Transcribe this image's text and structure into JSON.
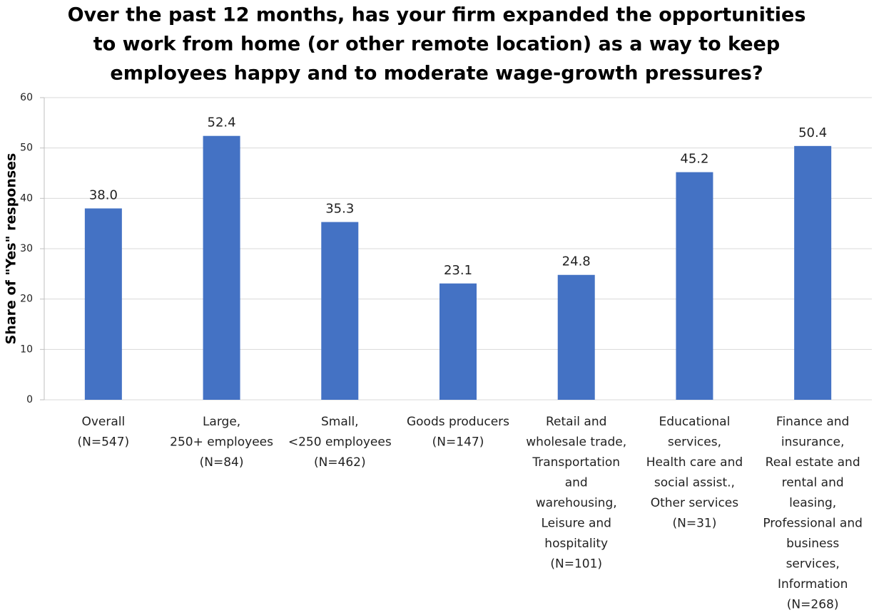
{
  "chart_data": {
    "type": "bar",
    "title": [
      "Over the past 12 months, has your firm expanded the opportunities",
      "to work from home (or other remote location) as a way to keep",
      "employees happy and to moderate wage-growth pressures?"
    ],
    "y_label": "Share of \"Yes\" responses",
    "categories": [
      [
        "Overall",
        "(N=547)"
      ],
      [
        "Large,",
        "250+ employees",
        "(N=84)"
      ],
      [
        "Small,",
        "<250 employees",
        "(N=462)"
      ],
      [
        "Goods producers",
        "(N=147)"
      ],
      [
        "Retail and",
        "wholesale trade,",
        "Transportation",
        "and",
        "warehousing,",
        "Leisure and",
        "hospitality",
        "(N=101)"
      ],
      [
        "Educational",
        "services,",
        "Health care and",
        "social assist.,",
        "Other services",
        "(N=31)"
      ],
      [
        "Finance and",
        "insurance,",
        "Real estate and",
        "rental and",
        "leasing,",
        "Professional and",
        "business",
        "services,",
        "Information",
        "(N=268)"
      ]
    ],
    "values": [
      38.0,
      52.4,
      35.3,
      23.1,
      24.8,
      45.2,
      50.4
    ],
    "value_labels": [
      "38.0",
      "52.4",
      "35.3",
      "23.1",
      "24.8",
      "45.2",
      "50.4"
    ],
    "color": "#4472c4",
    "ylim": [
      0,
      60
    ],
    "yticks": [
      0,
      10,
      20,
      30,
      40,
      50,
      60
    ],
    "grid": true
  }
}
